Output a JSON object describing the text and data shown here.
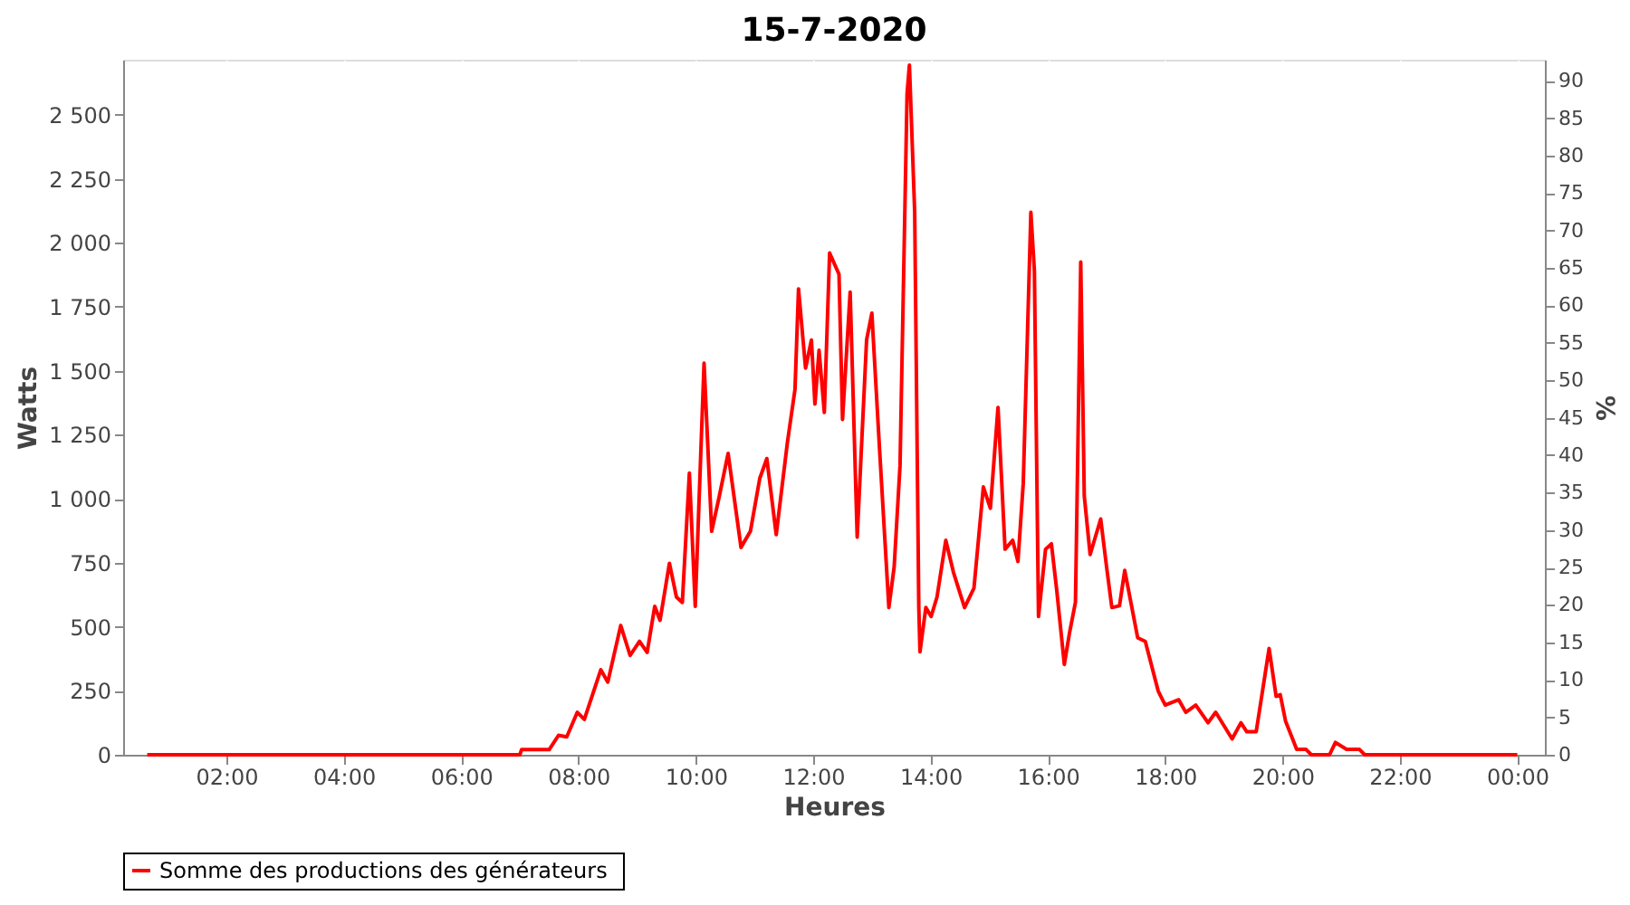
{
  "chart_data": {
    "type": "line",
    "title": "15-7-2020",
    "xlabel": "Heures",
    "ylabel": "Watts",
    "y2label": "%",
    "xlim": [
      0.24,
      24.47
    ],
    "xticks": [
      {
        "value": 2,
        "label": "02:00"
      },
      {
        "value": 4,
        "label": "04:00"
      },
      {
        "value": 6,
        "label": "06:00"
      },
      {
        "value": 8,
        "label": "08:00"
      },
      {
        "value": 10,
        "label": "10:00"
      },
      {
        "value": 12,
        "label": "12:00"
      },
      {
        "value": 14,
        "label": "14:00"
      },
      {
        "value": 16,
        "label": "16:00"
      },
      {
        "value": 18,
        "label": "18:00"
      },
      {
        "value": 20,
        "label": "20:00"
      },
      {
        "value": 22,
        "label": "22:00"
      },
      {
        "value": 24,
        "label": "00:00"
      }
    ],
    "ylim": [
      0,
      2715
    ],
    "yticks": [
      0,
      250,
      500,
      750,
      {
        "value": 1000,
        "label": "1 000"
      },
      {
        "value": 1250,
        "label": "1 250"
      },
      {
        "value": 1500,
        "label": "1 500"
      },
      {
        "value": 1750,
        "label": "1 750"
      },
      {
        "value": 2000,
        "label": "2 000"
      },
      {
        "value": 2250,
        "label": "2 250"
      },
      {
        "value": 2500,
        "label": "2 500"
      }
    ],
    "y2lim": [
      0,
      92.8
    ],
    "y2ticks": [
      0,
      5,
      10,
      15,
      20,
      25,
      30,
      35,
      40,
      45,
      50,
      55,
      60,
      65,
      70,
      75,
      80,
      85,
      90
    ],
    "grid": true,
    "legend": "bottom",
    "marker": "none",
    "line_style": "solid",
    "series": [
      {
        "name": "Somme des productions des  générateurs",
        "color": "#ff0000",
        "x": [
          0.65,
          7.0,
          7.03,
          7.5,
          7.66,
          7.8,
          7.98,
          8.1,
          8.38,
          8.5,
          8.72,
          8.88,
          9.04,
          9.17,
          9.3,
          9.39,
          9.55,
          9.67,
          9.77,
          9.89,
          9.99,
          10.14,
          10.27,
          10.4,
          10.55,
          10.77,
          10.93,
          11.09,
          11.21,
          11.37,
          11.56,
          11.69,
          11.75,
          11.87,
          11.97,
          12.03,
          12.1,
          12.19,
          12.28,
          12.44,
          12.5,
          12.63,
          12.75,
          12.91,
          13.0,
          13.13,
          13.29,
          13.38,
          13.48,
          13.6,
          13.64,
          13.73,
          13.8,
          13.82,
          13.92,
          14.01,
          14.11,
          14.26,
          14.39,
          14.58,
          14.74,
          14.9,
          15.02,
          15.15,
          15.27,
          15.4,
          15.49,
          15.58,
          15.71,
          15.77,
          15.84,
          15.96,
          16.06,
          16.15,
          16.28,
          16.37,
          16.47,
          16.56,
          16.62,
          16.72,
          16.9,
          17.0,
          17.09,
          17.22,
          17.31,
          17.53,
          17.66,
          17.88,
          18.0,
          18.23,
          18.35,
          18.52,
          18.73,
          18.86,
          19.14,
          19.29,
          19.39,
          19.55,
          19.77,
          19.89,
          19.96,
          20.05,
          20.24,
          20.4,
          20.49,
          20.8,
          20.9,
          21.09,
          21.31,
          21.4,
          24.0
        ],
        "values": [
          0,
          0,
          20,
          20,
          76,
          70,
          166,
          138,
          332,
          284,
          505,
          388,
          443,
          400,
          580,
          525,
          748,
          616,
          595,
          1100,
          580,
          1530,
          873,
          1010,
          1177,
          810,
          873,
          1080,
          1157,
          860,
          1219,
          1427,
          1820,
          1510,
          1620,
          1370,
          1580,
          1337,
          1960,
          1877,
          1310,
          1807,
          850,
          1620,
          1725,
          1198,
          575,
          734,
          1129,
          2583,
          2694,
          2119,
          575,
          402,
          575,
          540,
          616,
          838,
          713,
          575,
          651,
          1046,
          963,
          1357,
          803,
          838,
          755,
          1060,
          2119,
          1890,
          540,
          803,
          824,
          644,
          353,
          478,
          596,
          1925,
          1011,
          782,
          921,
          734,
          575,
          582,
          720,
          457,
          443,
          249,
          194,
          215,
          166,
          194,
          125,
          166,
          62,
          125,
          90,
          90,
          415,
          228,
          235,
          132,
          21,
          21,
          0,
          0,
          48,
          21,
          21,
          0,
          0
        ]
      }
    ]
  }
}
